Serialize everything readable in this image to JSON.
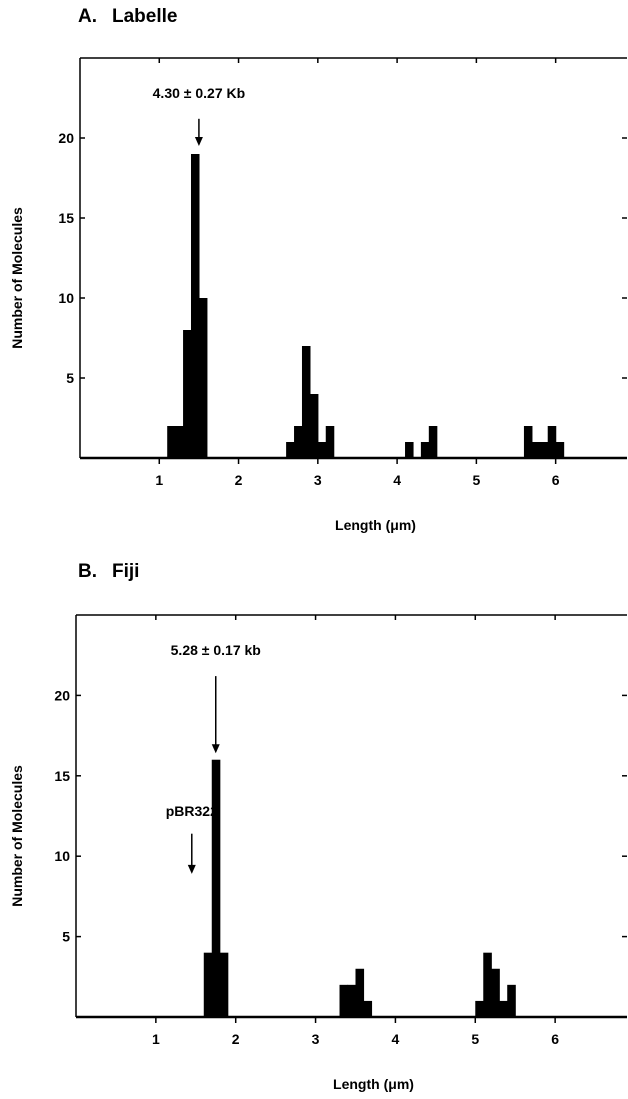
{
  "chart_data": [
    {
      "type": "bar",
      "panel_letter": "A.",
      "title": "Labelle",
      "xlabel": "Length (μm)",
      "ylabel": "Number of Molecules",
      "xlim": [
        0,
        6.9
      ],
      "ylim": [
        0,
        25
      ],
      "xticks": [
        1,
        2,
        3,
        4,
        5,
        6
      ],
      "yticks": [
        5,
        10,
        15,
        20
      ],
      "bin_width": 0.1,
      "bars": [
        {
          "x": 1.15,
          "y": 2
        },
        {
          "x": 1.25,
          "y": 2
        },
        {
          "x": 1.35,
          "y": 8
        },
        {
          "x": 1.45,
          "y": 19
        },
        {
          "x": 1.55,
          "y": 10
        },
        {
          "x": 2.65,
          "y": 1
        },
        {
          "x": 2.75,
          "y": 2
        },
        {
          "x": 2.85,
          "y": 7
        },
        {
          "x": 2.95,
          "y": 4
        },
        {
          "x": 3.05,
          "y": 1
        },
        {
          "x": 3.15,
          "y": 2
        },
        {
          "x": 4.15,
          "y": 1
        },
        {
          "x": 4.35,
          "y": 1
        },
        {
          "x": 4.45,
          "y": 2
        },
        {
          "x": 5.65,
          "y": 2
        },
        {
          "x": 5.75,
          "y": 1
        },
        {
          "x": 5.85,
          "y": 1
        },
        {
          "x": 5.95,
          "y": 2
        },
        {
          "x": 6.05,
          "y": 1
        }
      ],
      "annotations": [
        {
          "text": "4.30 ± 0.27 Kb",
          "x": 1.5,
          "y_text": 22.5,
          "arrow_from": 21.2,
          "arrow_to": 19.5
        }
      ]
    },
    {
      "type": "bar",
      "panel_letter": "B.",
      "title": "Fiji",
      "xlabel": "Length (μm)",
      "ylabel": "Number of Molecules",
      "xlim": [
        0,
        6.9
      ],
      "ylim": [
        0,
        25
      ],
      "xticks": [
        1,
        2,
        3,
        4,
        5,
        6
      ],
      "yticks": [
        5,
        10,
        15,
        20
      ],
      "bin_width": 0.1,
      "bars": [
        {
          "x": 1.65,
          "y": 4
        },
        {
          "x": 1.75,
          "y": 16
        },
        {
          "x": 1.85,
          "y": 4
        },
        {
          "x": 3.35,
          "y": 2
        },
        {
          "x": 3.45,
          "y": 2
        },
        {
          "x": 3.55,
          "y": 3
        },
        {
          "x": 3.65,
          "y": 1
        },
        {
          "x": 5.05,
          "y": 1
        },
        {
          "x": 5.15,
          "y": 4
        },
        {
          "x": 5.25,
          "y": 3
        },
        {
          "x": 5.35,
          "y": 1
        },
        {
          "x": 5.45,
          "y": 2
        }
      ],
      "annotations": [
        {
          "text": "5.28 ± 0.17 kb",
          "x": 1.75,
          "y_text": 22.5,
          "arrow_from": 21.2,
          "arrow_to": 16.4
        },
        {
          "text": "pBR322",
          "x": 1.45,
          "y_text": 12.5,
          "arrow_from": 11.4,
          "arrow_to": 8.9
        }
      ]
    }
  ]
}
